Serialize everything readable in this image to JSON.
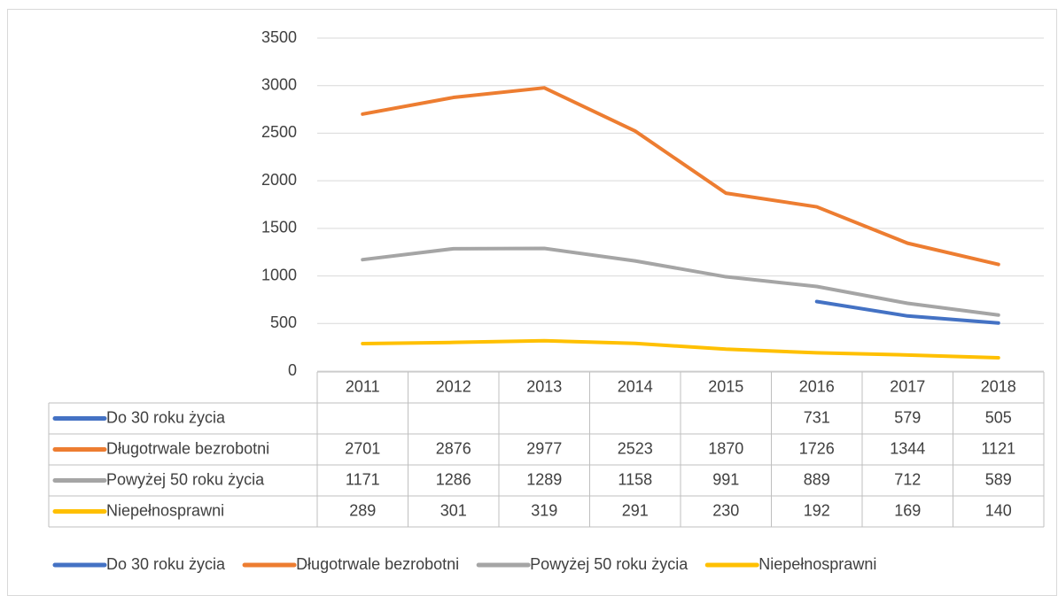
{
  "chart_data": {
    "type": "line",
    "categories": [
      "2011",
      "2012",
      "2013",
      "2014",
      "2015",
      "2016",
      "2017",
      "2018"
    ],
    "series": [
      {
        "name": "Do 30 roku życia",
        "color": "#4472c4",
        "values": [
          null,
          null,
          null,
          null,
          null,
          731,
          579,
          505
        ]
      },
      {
        "name": "Długotrwale bezrobotni",
        "color": "#ed7d31",
        "values": [
          2701,
          2876,
          2977,
          2523,
          1870,
          1726,
          1344,
          1121
        ]
      },
      {
        "name": "Powyżej 50 roku życia",
        "color": "#a5a5a5",
        "values": [
          1171,
          1286,
          1289,
          1158,
          991,
          889,
          712,
          589
        ]
      },
      {
        "name": "Niepełnosprawni",
        "color": "#ffc000",
        "values": [
          289,
          301,
          319,
          291,
          230,
          192,
          169,
          140
        ]
      }
    ],
    "ylim": [
      0,
      3500
    ],
    "yticks": [
      0,
      500,
      1000,
      1500,
      2000,
      2500,
      3000,
      3500
    ],
    "grid": true,
    "legend": "bottom",
    "data_table": true
  }
}
